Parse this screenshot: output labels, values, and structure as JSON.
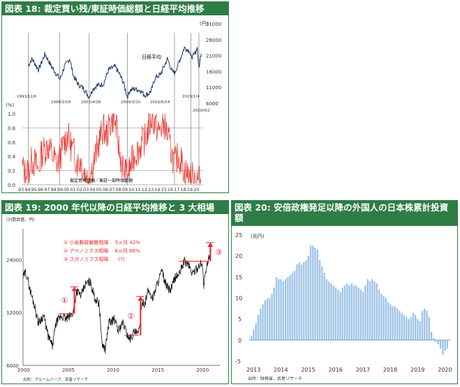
{
  "panels": {
    "p18": {
      "title": "図表 18: 裁定買い残/東証時価総額と日経平均推移",
      "unit_label": "(円)",
      "pct_label": "(%)",
      "series_nikkei_label": "日経平均",
      "series_ratio_label": "裁定買残金額／東証一部時価総額",
      "event_dates": [
        "1993/12/6",
        "1998/10/9",
        "2003/4/28",
        "2009/3/10",
        "2016/6/24",
        "2019/1/4",
        "2020/4/2"
      ]
    },
    "p19": {
      "title": "図表 19: 2000 年代以降の日経平均推移と 3 大相場",
      "unit_label": "(対数目盛、円)",
      "legend": [
        "① 小泉郵政解散相場　 5ヵ月 42%",
        "② アベノミクス相場　 6ヵ月 66%",
        "③ スガノミクス相場　　(?)"
      ],
      "markers": [
        "①",
        "②",
        "③"
      ],
      "source": "出所：ブルームバーグ、武者リサーチ"
    },
    "p20": {
      "title": "図表 20: 安倍政権発足以降の外国人の日本株累計投資額",
      "unit_label": "(兆円)",
      "source": "出所：財務省、武者リサーチ"
    }
  },
  "colors": {
    "header_bg": "#2e7d46",
    "nikkei": "#1f3a6e",
    "ratio": "#e8413c",
    "bars": "#9ec3e6",
    "annot": "#e8262a"
  },
  "chart_data": [
    {
      "type": "line",
      "title": "図表 18: 裁定買い残/東証時価総額と日経平均推移",
      "x_years": [
        "93",
        "94",
        "95",
        "96",
        "97",
        "98",
        "99",
        "00",
        "01",
        "02",
        "03",
        "04",
        "05",
        "06",
        "07",
        "08",
        "09",
        "10",
        "11",
        "12",
        "13",
        "14",
        "15",
        "16",
        "17",
        "18",
        "19",
        "20"
      ],
      "series": [
        {
          "name": "日経平均",
          "axis": "right",
          "ylim": [
            6000,
            31000
          ],
          "ticks": [
            6000,
            11000,
            16000,
            21000,
            26000,
            31000
          ],
          "x": [
            1993.9,
            1994.5,
            1995.5,
            1996.5,
            1997.5,
            1998.5,
            1998.8,
            1999.5,
            2000.3,
            2000.9,
            2001.6,
            2002.5,
            2003.3,
            2003.9,
            2004.5,
            2005.5,
            2006.3,
            2007.3,
            2007.9,
            2008.6,
            2009.2,
            2009.6,
            2010.3,
            2011.2,
            2011.9,
            2012.5,
            2012.9,
            2013.5,
            2014.3,
            2015.4,
            2016.1,
            2016.5,
            2017.3,
            2018.0,
            2018.8,
            2019.0,
            2019.5,
            2020.0,
            2020.25,
            2020.6
          ],
          "y": [
            17800,
            20000,
            16500,
            21500,
            17500,
            14500,
            13500,
            17500,
            20000,
            14500,
            12000,
            10500,
            8000,
            10500,
            11500,
            12000,
            16500,
            17500,
            15500,
            12500,
            8000,
            10000,
            10500,
            10000,
            8500,
            9000,
            10000,
            14000,
            15000,
            20000,
            16000,
            15500,
            19500,
            23500,
            22500,
            20500,
            21000,
            23500,
            17000,
            22000
          ]
        },
        {
          "name": "裁定買残金額／東証一部時価総額",
          "axis": "left",
          "ylim": [
            0,
            1.0
          ],
          "ticks": [
            0.0,
            0.2,
            0.4,
            0.6,
            0.8,
            1.0
          ],
          "x": [
            1993.0,
            1993.5,
            1994.0,
            1994.5,
            1995.0,
            1995.5,
            1996.0,
            1996.5,
            1997.0,
            1997.5,
            1998.0,
            1998.5,
            1999.0,
            1999.5,
            2000.0,
            2000.5,
            2001.0,
            2001.5,
            2002.0,
            2002.5,
            2003.0,
            2003.5,
            2004.0,
            2004.5,
            2005.0,
            2005.5,
            2006.0,
            2006.5,
            2007.0,
            2007.5,
            2008.0,
            2008.5,
            2009.0,
            2009.5,
            2010.0,
            2010.5,
            2011.0,
            2011.5,
            2012.0,
            2012.5,
            2013.0,
            2013.5,
            2014.0,
            2014.5,
            2015.0,
            2015.5,
            2016.0,
            2016.5,
            2017.0,
            2017.5,
            2018.0,
            2018.5,
            2019.0,
            2019.5,
            2020.0,
            2020.5
          ],
          "y": [
            0.25,
            0.15,
            0.2,
            0.35,
            0.3,
            0.2,
            0.45,
            0.5,
            0.55,
            0.45,
            0.35,
            0.3,
            0.45,
            0.6,
            0.7,
            0.55,
            0.45,
            0.3,
            0.35,
            0.2,
            0.1,
            0.15,
            0.3,
            0.5,
            0.65,
            0.8,
            0.7,
            0.85,
            0.95,
            0.8,
            0.45,
            0.25,
            0.15,
            0.2,
            0.35,
            0.45,
            0.5,
            0.6,
            0.65,
            0.8,
            0.95,
            0.85,
            0.75,
            0.8,
            0.85,
            0.65,
            0.45,
            0.3,
            0.4,
            0.35,
            0.2,
            0.15,
            0.1,
            0.12,
            0.08,
            0.06
          ]
        }
      ]
    },
    {
      "type": "line",
      "title": "図表 19: 2000 年代以降の日経平均推移と 3 大相場",
      "xlim": [
        2000,
        2022
      ],
      "x_ticks": [
        2000,
        2005,
        2010,
        2015,
        2020
      ],
      "y_scale": "log",
      "ylim": [
        6000,
        36000
      ],
      "y_ticks": [
        6000,
        12000,
        24000
      ],
      "series": [
        {
          "name": "日経平均",
          "x": [
            2000.0,
            2000.3,
            2000.8,
            2001.3,
            2001.7,
            2002.3,
            2002.8,
            2003.3,
            2003.7,
            2004.3,
            2004.8,
            2005.3,
            2005.6,
            2006.0,
            2006.5,
            2007.0,
            2007.5,
            2008.0,
            2008.5,
            2008.8,
            2009.2,
            2009.6,
            2010.2,
            2010.6,
            2011.2,
            2011.6,
            2012.0,
            2012.4,
            2012.9,
            2013.4,
            2013.6,
            2014.0,
            2014.5,
            2015.0,
            2015.5,
            2016.0,
            2016.5,
            2017.0,
            2017.5,
            2018.0,
            2018.5,
            2018.9,
            2019.5,
            2020.0,
            2020.2,
            2020.6,
            2021.0
          ],
          "y": [
            19000,
            20500,
            16000,
            13000,
            10500,
            11500,
            8800,
            7700,
            10500,
            11500,
            11000,
            11500,
            12000,
            16000,
            15000,
            17500,
            18000,
            14500,
            13500,
            8000,
            7400,
            10500,
            11000,
            9500,
            10500,
            9000,
            8500,
            9300,
            9000,
            14000,
            13500,
            16000,
            14500,
            17500,
            20500,
            17000,
            16000,
            19000,
            20000,
            23500,
            22500,
            20000,
            21500,
            23500,
            17000,
            22500,
            27500
          ]
        }
      ],
      "annotations": [
        {
          "label": "①",
          "x_start": 2005.5,
          "y_start": 11800,
          "y_end": 16800
        },
        {
          "label": "②",
          "x_start": 2012.9,
          "y_start": 8900,
          "y_end": 14800
        },
        {
          "label": "③",
          "x_start": 2020.7,
          "y_start": 23500,
          "y_end": 30000
        }
      ]
    },
    {
      "type": "bar",
      "title": "図表 20: 安倍政権発足以降の外国人の日本株累計投資額",
      "ylim": [
        -5,
        25
      ],
      "y_ticks": [
        -5,
        0,
        5,
        10,
        15,
        20,
        25
      ],
      "x_labels": [
        "2013",
        "2014",
        "2015",
        "2016",
        "2017",
        "2018",
        "2019",
        "2020"
      ],
      "start_year": 2013,
      "values": [
        1.0,
        2.5,
        4.0,
        6.0,
        7.5,
        8.5,
        9.5,
        10.0,
        10.0,
        11.0,
        12.5,
        15.0,
        14.5,
        14.5,
        14.0,
        14.5,
        15.0,
        15.5,
        16.0,
        16.5,
        18.0,
        18.5,
        18.0,
        18.5,
        19.0,
        20.0,
        22.5,
        22.5,
        22.0,
        21.5,
        19.0,
        17.5,
        16.0,
        14.5,
        14.0,
        13.5,
        13.0,
        12.5,
        12.0,
        11.5,
        12.5,
        13.0,
        13.5,
        13.0,
        13.5,
        13.0,
        13.0,
        12.5,
        12.0,
        11.5,
        13.0,
        14.5,
        14.0,
        14.5,
        14.0,
        13.5,
        12.0,
        11.0,
        10.5,
        10.0,
        9.0,
        8.5,
        8.0,
        8.0,
        7.5,
        7.0,
        6.5,
        6.0,
        5.5,
        5.0,
        5.5,
        6.5,
        6.0,
        5.0,
        4.5,
        7.0,
        7.5,
        7.0,
        5.5,
        2.0,
        0.5,
        -0.5,
        -1.0,
        -2.0,
        -3.5,
        -2.5,
        -2.0
      ]
    }
  ]
}
